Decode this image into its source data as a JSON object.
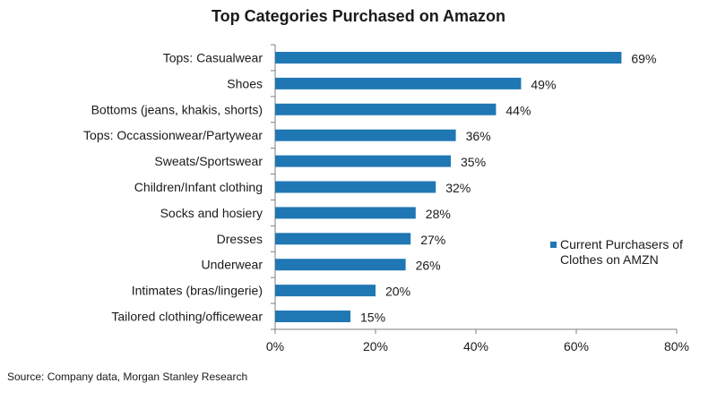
{
  "chart_data": {
    "type": "bar",
    "orientation": "horizontal",
    "title": "Top Categories Purchased on Amazon",
    "categories": [
      "Tops: Casualwear",
      "Shoes",
      "Bottoms (jeans, khakis, shorts)",
      "Tops: Occassionwear/Partywear",
      "Sweats/Sportswear",
      "Children/Infant clothing",
      "Socks and hosiery",
      "Dresses",
      "Underwear",
      "Intimates (bras/lingerie)",
      "Tailored clothing/officewear"
    ],
    "series": [
      {
        "name": "Current Purchasers of Clothes on AMZN",
        "values": [
          69,
          49,
          44,
          36,
          35,
          32,
          28,
          27,
          26,
          20,
          15
        ],
        "value_labels": [
          "69%",
          "49%",
          "44%",
          "36%",
          "35%",
          "32%",
          "28%",
          "27%",
          "26%",
          "20%",
          "15%"
        ]
      }
    ],
    "xlim": [
      0,
      80
    ],
    "x_ticks": [
      0,
      20,
      40,
      60,
      80
    ],
    "x_tick_labels": [
      "0%",
      "20%",
      "40%",
      "60%",
      "80%"
    ],
    "grid": false,
    "legend_position": "right",
    "bar_color": "#1f77b4"
  },
  "source": "Source: Company data, Morgan Stanley Research"
}
